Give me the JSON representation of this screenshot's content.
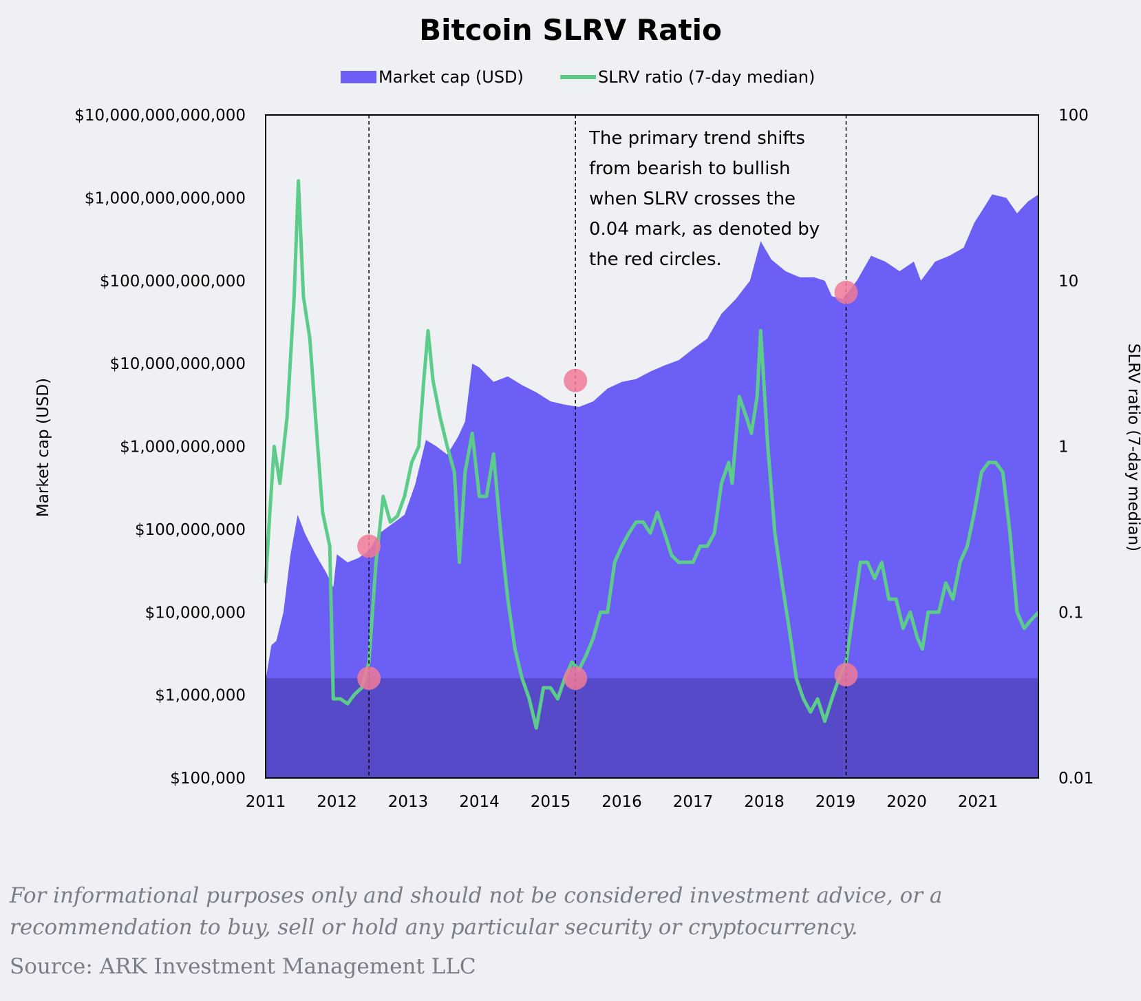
{
  "colors": {
    "market_cap": "#6c5ff5",
    "slrv": "#5ccc8b",
    "low_band": "#564ac9",
    "circle": "#f07a98",
    "background": "#eff0f4"
  },
  "disclaimer": "For informational purposes only and should not be considered investment advice, or a recommendation to buy, sell or hold any particular security or cryptocurrency.",
  "source": "Source: ARK Investment Management LLC",
  "chart_data": {
    "type": "area",
    "title": "Bitcoin SLRV Ratio",
    "legend": {
      "placement": "top-center",
      "entries": [
        "Market cap (USD)",
        "SLRV ratio (7-day median)"
      ]
    },
    "x_axis": {
      "ticks": [
        "2011",
        "2012",
        "2013",
        "2014",
        "2015",
        "2016",
        "2017",
        "2018",
        "2019",
        "2020",
        "2021"
      ],
      "range": [
        2011.0,
        2021.85
      ]
    },
    "y_left": {
      "label": "Market cap (USD)",
      "scale": "log",
      "range": [
        100000,
        10000000000000
      ],
      "ticks": [
        "$10,000,000,000,000",
        "$1,000,000,000,000",
        "$100,000,000,000",
        "$10,000,000,000",
        "$1,000,000,000",
        "$100,000,000",
        "$10,000,000",
        "$1,000,000",
        "$100,000"
      ]
    },
    "y_right": {
      "label": "SLRV ratio (7-day median)",
      "scale": "log",
      "range": [
        0.01,
        100
      ],
      "ticks": [
        "100",
        "10",
        "1",
        "0.1",
        "0.01"
      ]
    },
    "series": [
      {
        "name": "Market cap (USD)",
        "type": "area",
        "axis": "left",
        "points": [
          [
            2011.0,
            1500000
          ],
          [
            2011.08,
            4000000
          ],
          [
            2011.15,
            4500000
          ],
          [
            2011.25,
            10000000
          ],
          [
            2011.35,
            50000000
          ],
          [
            2011.45,
            150000000
          ],
          [
            2011.55,
            90000000
          ],
          [
            2011.7,
            50000000
          ],
          [
            2011.85,
            30000000
          ],
          [
            2011.95,
            20000000
          ],
          [
            2012.0,
            50000000
          ],
          [
            2012.15,
            40000000
          ],
          [
            2012.3,
            45000000
          ],
          [
            2012.45,
            55000000
          ],
          [
            2012.6,
            90000000
          ],
          [
            2012.8,
            120000000
          ],
          [
            2012.95,
            150000000
          ],
          [
            2013.1,
            350000000
          ],
          [
            2013.25,
            1200000000
          ],
          [
            2013.4,
            1000000000
          ],
          [
            2013.55,
            800000000
          ],
          [
            2013.7,
            1300000000
          ],
          [
            2013.8,
            2000000000
          ],
          [
            2013.9,
            10000000000
          ],
          [
            2014.0,
            9000000000
          ],
          [
            2014.2,
            6000000000
          ],
          [
            2014.4,
            7000000000
          ],
          [
            2014.6,
            5500000000
          ],
          [
            2014.8,
            4500000000
          ],
          [
            2015.0,
            3500000000
          ],
          [
            2015.2,
            3200000000
          ],
          [
            2015.4,
            3000000000
          ],
          [
            2015.6,
            3500000000
          ],
          [
            2015.8,
            5000000000
          ],
          [
            2016.0,
            6000000000
          ],
          [
            2016.2,
            6500000000
          ],
          [
            2016.4,
            8000000000
          ],
          [
            2016.6,
            9500000000
          ],
          [
            2016.8,
            11000000000
          ],
          [
            2017.0,
            15000000000
          ],
          [
            2017.2,
            20000000000
          ],
          [
            2017.4,
            40000000000
          ],
          [
            2017.6,
            60000000000
          ],
          [
            2017.8,
            100000000000
          ],
          [
            2017.95,
            300000000000
          ],
          [
            2018.1,
            180000000000
          ],
          [
            2018.3,
            130000000000
          ],
          [
            2018.5,
            110000000000
          ],
          [
            2018.7,
            110000000000
          ],
          [
            2018.85,
            100000000000
          ],
          [
            2018.95,
            65000000000
          ],
          [
            2019.1,
            60000000000
          ],
          [
            2019.3,
            100000000000
          ],
          [
            2019.5,
            200000000000
          ],
          [
            2019.7,
            170000000000
          ],
          [
            2019.9,
            130000000000
          ],
          [
            2020.1,
            170000000000
          ],
          [
            2020.2,
            100000000000
          ],
          [
            2020.4,
            170000000000
          ],
          [
            2020.6,
            200000000000
          ],
          [
            2020.8,
            250000000000
          ],
          [
            2020.95,
            500000000000
          ],
          [
            2021.1,
            800000000000
          ],
          [
            2021.2,
            1100000000000
          ],
          [
            2021.4,
            1000000000000
          ],
          [
            2021.55,
            650000000000
          ],
          [
            2021.7,
            900000000000
          ],
          [
            2021.85,
            1100000000000
          ]
        ]
      },
      {
        "name": "SLRV ratio (7-day median)",
        "type": "line",
        "axis": "right",
        "points": [
          [
            2011.0,
            0.15
          ],
          [
            2011.05,
            0.35
          ],
          [
            2011.12,
            1.0
          ],
          [
            2011.2,
            0.6
          ],
          [
            2011.3,
            1.5
          ],
          [
            2011.4,
            8.0
          ],
          [
            2011.46,
            40.0
          ],
          [
            2011.53,
            8.0
          ],
          [
            2011.62,
            4.5
          ],
          [
            2011.7,
            1.5
          ],
          [
            2011.8,
            0.4
          ],
          [
            2011.9,
            0.25
          ],
          [
            2011.95,
            0.03
          ],
          [
            2012.05,
            0.03
          ],
          [
            2012.15,
            0.028
          ],
          [
            2012.25,
            0.032
          ],
          [
            2012.35,
            0.035
          ],
          [
            2012.45,
            0.05
          ],
          [
            2012.55,
            0.2
          ],
          [
            2012.65,
            0.5
          ],
          [
            2012.75,
            0.35
          ],
          [
            2012.85,
            0.38
          ],
          [
            2012.95,
            0.5
          ],
          [
            2013.05,
            0.8
          ],
          [
            2013.15,
            1.0
          ],
          [
            2013.22,
            2.5
          ],
          [
            2013.28,
            5.0
          ],
          [
            2013.35,
            2.5
          ],
          [
            2013.45,
            1.5
          ],
          [
            2013.55,
            1.0
          ],
          [
            2013.65,
            0.7
          ],
          [
            2013.72,
            0.2
          ],
          [
            2013.8,
            0.7
          ],
          [
            2013.9,
            1.2
          ],
          [
            2014.0,
            0.5
          ],
          [
            2014.1,
            0.5
          ],
          [
            2014.2,
            0.9
          ],
          [
            2014.3,
            0.3
          ],
          [
            2014.4,
            0.12
          ],
          [
            2014.5,
            0.06
          ],
          [
            2014.6,
            0.04
          ],
          [
            2014.7,
            0.03
          ],
          [
            2014.8,
            0.02
          ],
          [
            2014.9,
            0.035
          ],
          [
            2015.0,
            0.035
          ],
          [
            2015.1,
            0.03
          ],
          [
            2015.2,
            0.04
          ],
          [
            2015.3,
            0.05
          ],
          [
            2015.4,
            0.045
          ],
          [
            2015.5,
            0.055
          ],
          [
            2015.6,
            0.07
          ],
          [
            2015.7,
            0.1
          ],
          [
            2015.8,
            0.1
          ],
          [
            2015.9,
            0.2
          ],
          [
            2016.0,
            0.25
          ],
          [
            2016.1,
            0.3
          ],
          [
            2016.2,
            0.35
          ],
          [
            2016.3,
            0.35
          ],
          [
            2016.4,
            0.3
          ],
          [
            2016.5,
            0.4
          ],
          [
            2016.6,
            0.3
          ],
          [
            2016.7,
            0.22
          ],
          [
            2016.8,
            0.2
          ],
          [
            2016.9,
            0.2
          ],
          [
            2017.0,
            0.2
          ],
          [
            2017.1,
            0.25
          ],
          [
            2017.2,
            0.25
          ],
          [
            2017.3,
            0.3
          ],
          [
            2017.4,
            0.6
          ],
          [
            2017.5,
            0.8
          ],
          [
            2017.55,
            0.6
          ],
          [
            2017.65,
            2.0
          ],
          [
            2017.75,
            1.5
          ],
          [
            2017.82,
            1.2
          ],
          [
            2017.9,
            2.0
          ],
          [
            2017.95,
            5.0
          ],
          [
            2018.05,
            1.0
          ],
          [
            2018.15,
            0.3
          ],
          [
            2018.25,
            0.15
          ],
          [
            2018.35,
            0.08
          ],
          [
            2018.45,
            0.04
          ],
          [
            2018.55,
            0.03
          ],
          [
            2018.65,
            0.025
          ],
          [
            2018.75,
            0.03
          ],
          [
            2018.85,
            0.022
          ],
          [
            2018.95,
            0.03
          ],
          [
            2019.05,
            0.04
          ],
          [
            2019.15,
            0.05
          ],
          [
            2019.25,
            0.1
          ],
          [
            2019.35,
            0.2
          ],
          [
            2019.45,
            0.2
          ],
          [
            2019.55,
            0.16
          ],
          [
            2019.65,
            0.2
          ],
          [
            2019.75,
            0.12
          ],
          [
            2019.85,
            0.12
          ],
          [
            2019.95,
            0.08
          ],
          [
            2020.05,
            0.1
          ],
          [
            2020.15,
            0.07
          ],
          [
            2020.22,
            0.06
          ],
          [
            2020.3,
            0.1
          ],
          [
            2020.45,
            0.1
          ],
          [
            2020.55,
            0.15
          ],
          [
            2020.65,
            0.12
          ],
          [
            2020.75,
            0.2
          ],
          [
            2020.85,
            0.25
          ],
          [
            2020.95,
            0.4
          ],
          [
            2021.05,
            0.7
          ],
          [
            2021.15,
            0.8
          ],
          [
            2021.25,
            0.8
          ],
          [
            2021.35,
            0.7
          ],
          [
            2021.45,
            0.3
          ],
          [
            2021.55,
            0.1
          ],
          [
            2021.65,
            0.08
          ],
          [
            2021.75,
            0.09
          ],
          [
            2021.85,
            0.1
          ]
        ]
      }
    ],
    "shaded_region": {
      "axis": "right",
      "from": 0.01,
      "to": 0.04,
      "color": "#564ac9"
    },
    "vertical_markers": [
      2012.45,
      2015.35,
      2019.15
    ],
    "markers": [
      {
        "x": 2012.45,
        "value": 0.25,
        "axis": "right"
      },
      {
        "x": 2012.45,
        "value": 0.04,
        "axis": "right"
      },
      {
        "x": 2015.35,
        "value": 2.5,
        "axis": "right"
      },
      {
        "x": 2015.35,
        "value": 0.04,
        "axis": "right"
      },
      {
        "x": 2019.15,
        "value": 8.5,
        "axis": "right"
      },
      {
        "x": 2019.15,
        "value": 0.042,
        "axis": "right"
      }
    ],
    "annotation": {
      "lines": [
        "The primary trend shifts",
        "from bearish to bullish",
        "when SLRV crosses the",
        "0.04 mark, as denoted by",
        "the red circles."
      ]
    }
  }
}
